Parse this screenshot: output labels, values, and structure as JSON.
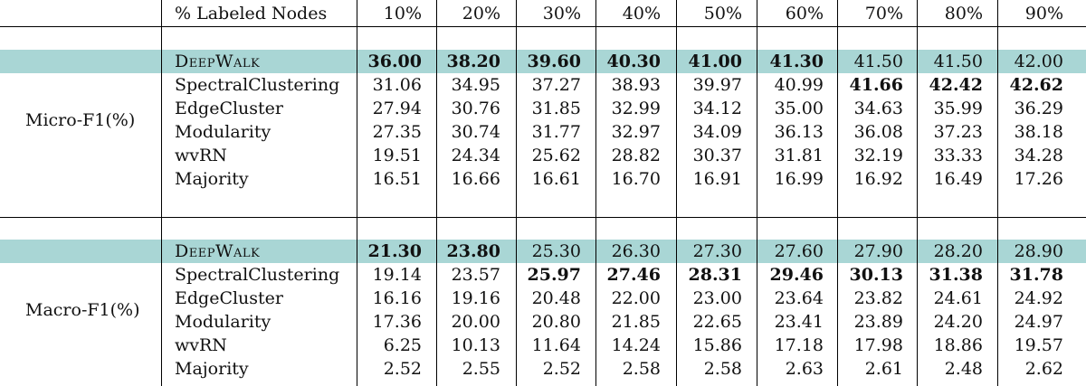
{
  "header": {
    "label": "% Labeled Nodes",
    "columns": [
      "10%",
      "20%",
      "30%",
      "40%",
      "50%",
      "60%",
      "70%",
      "80%",
      "90%"
    ]
  },
  "sections": [
    {
      "metric": "Micro-F1(%)",
      "rows": [
        {
          "method": "DeepWalk",
          "highlight": true,
          "values": [
            "36.00",
            "38.20",
            "39.60",
            "40.30",
            "41.00",
            "41.30",
            "41.50",
            "41.50",
            "42.00"
          ],
          "bold": [
            true,
            true,
            true,
            true,
            true,
            true,
            false,
            false,
            false
          ]
        },
        {
          "method": "SpectralClustering",
          "highlight": false,
          "values": [
            "31.06",
            "34.95",
            "37.27",
            "38.93",
            "39.97",
            "40.99",
            "41.66",
            "42.42",
            "42.62"
          ],
          "bold": [
            false,
            false,
            false,
            false,
            false,
            false,
            true,
            true,
            true
          ]
        },
        {
          "method": "EdgeCluster",
          "highlight": false,
          "values": [
            "27.94",
            "30.76",
            "31.85",
            "32.99",
            "34.12",
            "35.00",
            "34.63",
            "35.99",
            "36.29"
          ],
          "bold": [
            false,
            false,
            false,
            false,
            false,
            false,
            false,
            false,
            false
          ]
        },
        {
          "method": "Modularity",
          "highlight": false,
          "values": [
            "27.35",
            "30.74",
            "31.77",
            "32.97",
            "34.09",
            "36.13",
            "36.08",
            "37.23",
            "38.18"
          ],
          "bold": [
            false,
            false,
            false,
            false,
            false,
            false,
            false,
            false,
            false
          ]
        },
        {
          "method": "wvRN",
          "highlight": false,
          "values": [
            "19.51",
            "24.34",
            "25.62",
            "28.82",
            "30.37",
            "31.81",
            "32.19",
            "33.33",
            "34.28"
          ],
          "bold": [
            false,
            false,
            false,
            false,
            false,
            false,
            false,
            false,
            false
          ]
        },
        {
          "method": "Majority",
          "highlight": false,
          "values": [
            "16.51",
            "16.66",
            "16.61",
            "16.70",
            "16.91",
            "16.99",
            "16.92",
            "16.49",
            "17.26"
          ],
          "bold": [
            false,
            false,
            false,
            false,
            false,
            false,
            false,
            false,
            false
          ]
        }
      ]
    },
    {
      "metric": "Macro-F1(%)",
      "rows": [
        {
          "method": "DeepWalk",
          "highlight": true,
          "values": [
            "21.30",
            "23.80",
            "25.30",
            "26.30",
            "27.30",
            "27.60",
            "27.90",
            "28.20",
            "28.90"
          ],
          "bold": [
            true,
            true,
            false,
            false,
            false,
            false,
            false,
            false,
            false
          ]
        },
        {
          "method": "SpectralClustering",
          "highlight": false,
          "values": [
            "19.14",
            "23.57",
            "25.97",
            "27.46",
            "28.31",
            "29.46",
            "30.13",
            "31.38",
            "31.78"
          ],
          "bold": [
            false,
            false,
            true,
            true,
            true,
            true,
            true,
            true,
            true
          ]
        },
        {
          "method": "EdgeCluster",
          "highlight": false,
          "values": [
            "16.16",
            "19.16",
            "20.48",
            "22.00",
            "23.00",
            "23.64",
            "23.82",
            "24.61",
            "24.92"
          ],
          "bold": [
            false,
            false,
            false,
            false,
            false,
            false,
            false,
            false,
            false
          ]
        },
        {
          "method": "Modularity",
          "highlight": false,
          "values": [
            "17.36",
            "20.00",
            "20.80",
            "21.85",
            "22.65",
            "23.41",
            "23.89",
            "24.20",
            "24.97"
          ],
          "bold": [
            false,
            false,
            false,
            false,
            false,
            false,
            false,
            false,
            false
          ]
        },
        {
          "method": "wvRN",
          "highlight": false,
          "values": [
            "6.25",
            "10.13",
            "11.64",
            "14.24",
            "15.86",
            "17.18",
            "17.98",
            "18.86",
            "19.57"
          ],
          "bold": [
            false,
            false,
            false,
            false,
            false,
            false,
            false,
            false,
            false
          ]
        },
        {
          "method": "Majority",
          "highlight": false,
          "values": [
            "2.52",
            "2.55",
            "2.52",
            "2.58",
            "2.58",
            "2.63",
            "2.61",
            "2.48",
            "2.62"
          ],
          "bold": [
            false,
            false,
            false,
            false,
            false,
            false,
            false,
            false,
            false
          ]
        }
      ]
    }
  ]
}
